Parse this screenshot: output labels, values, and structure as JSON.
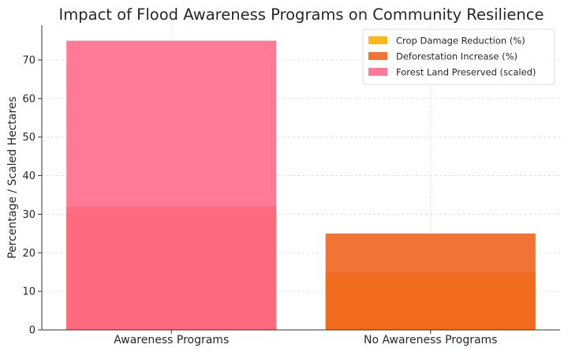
{
  "chart_data": {
    "type": "bar",
    "title": "Impact of Flood Awareness Programs on Community Resilience",
    "xlabel": "",
    "ylabel": "Percentage / Scaled Hectares",
    "categories": [
      "Awareness Programs",
      "No Awareness Programs"
    ],
    "series": [
      {
        "name": "Crop Damage Reduction (%)",
        "values": [
          30,
          15
        ],
        "color": "#ffb000"
      },
      {
        "name": "Deforestation Increase (%)",
        "values": [
          32,
          25
        ],
        "color": "#ef6420"
      },
      {
        "name": "Forest Land Preserved (scaled)",
        "values": [
          75,
          0
        ],
        "color": "#ff6b8b"
      }
    ],
    "series_opacity": 0.9,
    "ylim": [
      0,
      79
    ],
    "yticks": [
      0,
      10,
      20,
      30,
      40,
      50,
      60,
      70
    ],
    "grid": true,
    "legend": "top-right"
  }
}
